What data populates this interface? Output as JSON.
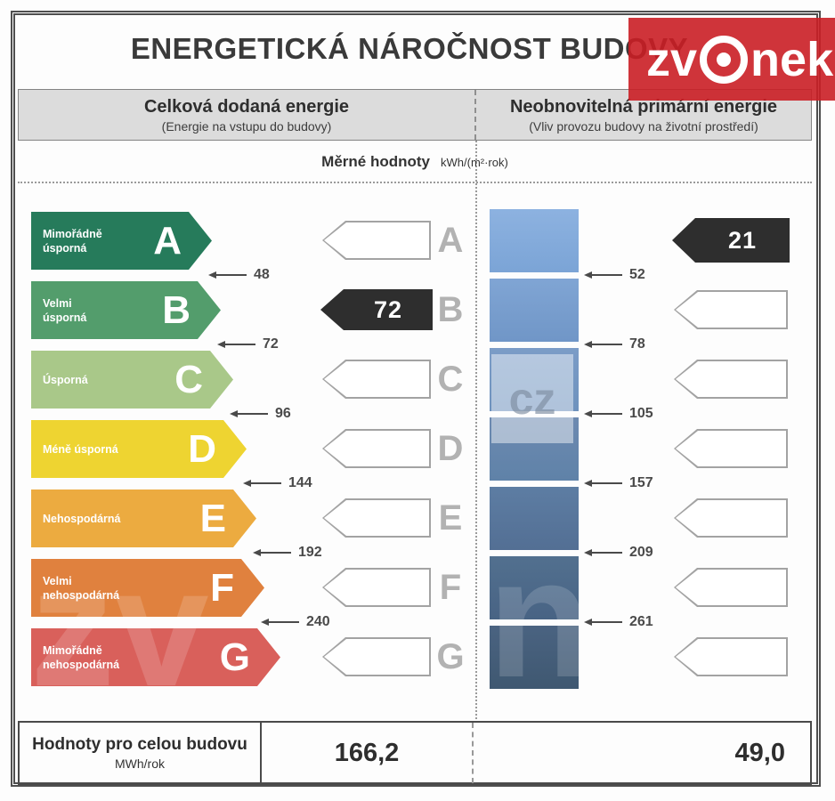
{
  "title": "ENERGETICKÁ NÁROČNOST BUDOVY",
  "logo": {
    "text_left": "zv",
    "text_right": "nek",
    "bg_color": "#ca1e25"
  },
  "columns": {
    "left": {
      "title": "Celková dodaná energie",
      "subtitle": "(Energie na vstupu do budovy)"
    },
    "right": {
      "title": "Neobnovitelná primární energie",
      "subtitle": "(Vliv provozu budovy na životní prostředí)"
    }
  },
  "units_row": {
    "label": "Měrné hodnoty",
    "unit": "kWh/(m²·rok)"
  },
  "chart_data": {
    "type": "energy-rating-scale",
    "title": "ENERGETICKÁ NÁROČNOST BUDOVY",
    "classes": [
      {
        "letter": "A",
        "label": "Mimořádně\núsporná",
        "color": "#267b5b"
      },
      {
        "letter": "B",
        "label": "Velmi\núsporná",
        "color": "#539d6c"
      },
      {
        "letter": "C",
        "label": "Úsporná",
        "color": "#a9c889"
      },
      {
        "letter": "D",
        "label": "Méně úsporná",
        "color": "#eed431"
      },
      {
        "letter": "E",
        "label": "Nehospodárná",
        "color": "#ecab40"
      },
      {
        "letter": "F",
        "label": "Velmi\nnehospodárná",
        "color": "#e0813e"
      },
      {
        "letter": "G",
        "label": "Mimořádně\nnehospodárná",
        "color": "#d9605b"
      }
    ],
    "left_scale": {
      "name": "Celková dodaná energie",
      "unit": "kWh/(m²·rok)",
      "thresholds": [
        48,
        72,
        96,
        144,
        192,
        240
      ],
      "rating_value": "72",
      "rating_class": "B"
    },
    "right_scale": {
      "name": "Neobnovitelná primární energie",
      "unit": "kWh/(m²·rok)",
      "thresholds": [
        52,
        78,
        105,
        157,
        209,
        261
      ],
      "rating_value": "21",
      "rating_class": "A"
    },
    "blue_blocks": [
      [
        "#8db2e0",
        "#7ba4d6"
      ],
      [
        "#80a5d4",
        "#7096c7"
      ],
      [
        "#7b9cc7",
        "#6e92bd"
      ],
      [
        "#6d8ab1",
        "#5f82a8"
      ],
      [
        "#5d7da3",
        "#536f94"
      ],
      [
        "#52708f",
        "#486384"
      ],
      [
        "#4a6381",
        "#3f5871"
      ]
    ],
    "arrow_dark_color": "#2e2e2e"
  },
  "footer": {
    "label": "Hodnoty pro celou budovu",
    "unit": "MWh/rok",
    "left_value": "166,2",
    "right_value": "49,0"
  },
  "watermark": {
    "cz": "cz",
    "zv": "zv",
    "n": "n"
  }
}
